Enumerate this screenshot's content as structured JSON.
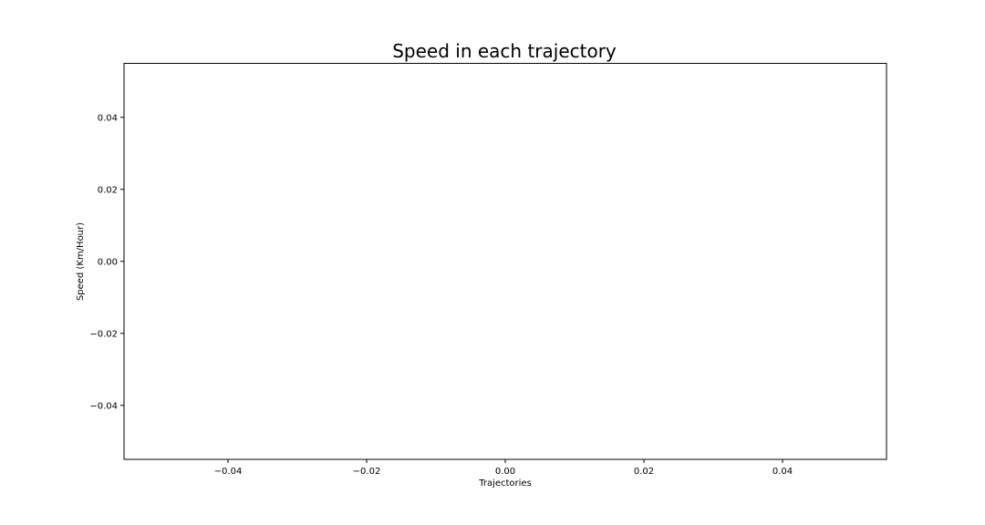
{
  "chart_data": {
    "type": "line",
    "title": "Speed in each trajectory",
    "xlabel": "Trajectories",
    "ylabel": "Speed (Km/Hour)",
    "xlim": [
      -0.055,
      0.055
    ],
    "ylim": [
      -0.055,
      0.055
    ],
    "x_ticks": [
      -0.04,
      -0.02,
      0.0,
      0.02,
      0.04
    ],
    "x_tick_labels": [
      "−0.04",
      "−0.02",
      "0.00",
      "0.02",
      "0.04"
    ],
    "y_ticks": [
      0.04,
      0.02,
      0.0,
      -0.02,
      -0.04
    ],
    "y_tick_labels": [
      "0.04",
      "0.02",
      "0.00",
      "−0.02",
      "−0.04"
    ],
    "series": [],
    "grid": false,
    "colors": {
      "axis": "#000000",
      "background": "#ffffff"
    }
  }
}
